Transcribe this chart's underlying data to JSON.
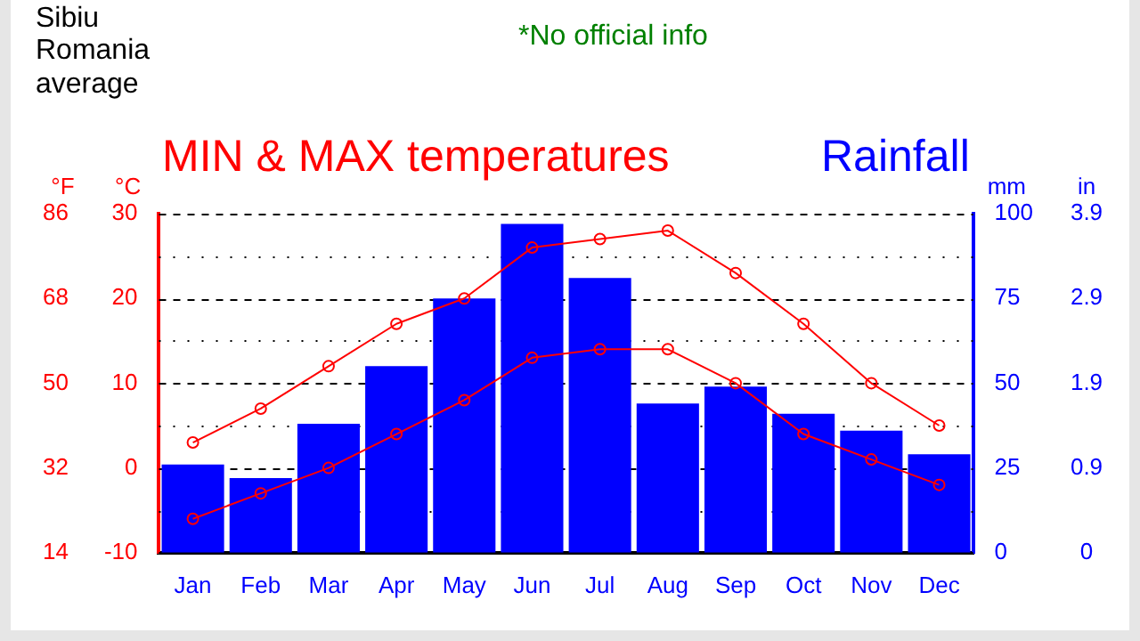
{
  "chart_data": {
    "type": "bar",
    "title": "MIN & MAX temperatures",
    "subtitle": "Rainfall",
    "annotations": [
      "Sibiu\nRomania\naverage",
      "*No official info",
      "in",
      "0",
      "0.9",
      "1.9",
      "2.9",
      "3.9"
    ],
    "categories": [
      "Jan",
      "Feb",
      "Mar",
      "Apr",
      "May",
      "Jun",
      "Jul",
      "Aug",
      "Sep",
      "Oct",
      "Nov",
      "Dec"
    ],
    "series": [
      {
        "axis": "y2",
        "color": "#0000ff",
        "values": [
          26,
          22,
          38,
          55,
          75,
          97,
          81,
          44,
          49,
          41,
          36,
          29
        ]
      },
      {
        "type": "line",
        "color": "#ff0000",
        "marker": "circle",
        "values": [
          3,
          7,
          12,
          17,
          20,
          26,
          27,
          28,
          23,
          17,
          10,
          5
        ]
      },
      {
        "type": "line",
        "color": "#ff0000",
        "marker": "circle",
        "values": [
          -6,
          -3,
          0,
          4,
          8,
          13,
          14,
          14,
          10,
          4,
          1,
          -2
        ]
      }
    ],
    "ylabel": "°C",
    "ylim": [
      -10,
      30
    ],
    "yticks": [
      -10,
      {
        "value": -5,
        "label": null
      },
      0,
      {
        "value": 5,
        "label": null
      },
      10,
      {
        "value": 15,
        "label": null
      },
      20,
      {
        "value": 25,
        "label": null
      },
      30
    ],
    "y2label": "mm",
    "y2lim": [
      0,
      100
    ],
    "y2ticks": [
      0,
      25,
      50,
      75,
      100
    ],
    "y3label": "°F",
    "y3lim": [
      14,
      86
    ],
    "y3ticks": [
      14,
      32,
      50,
      68,
      86
    ],
    "grid": "y",
    "legend": false
  }
}
